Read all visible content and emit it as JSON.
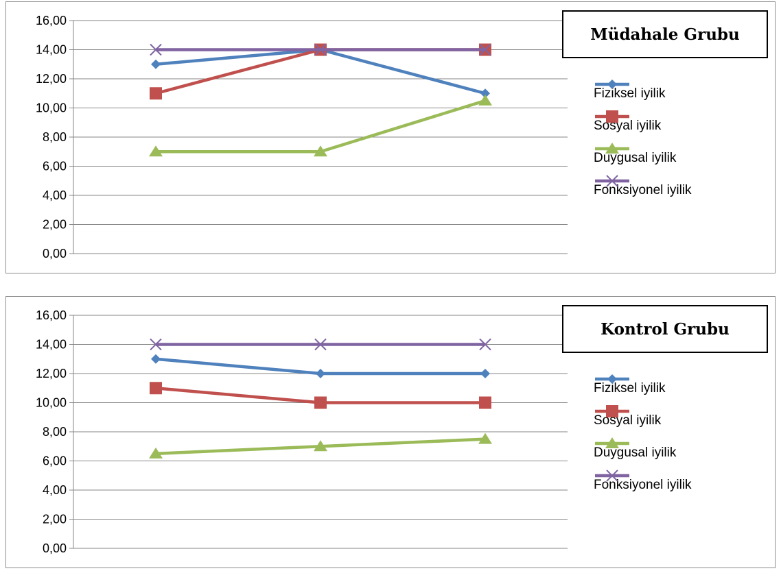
{
  "colors": {
    "Fiziksel iyilik": "#4f81bd",
    "Sosyal iyilik": "#c0504d",
    "Duygusal iyilik": "#9bbb59",
    "Fonksiyonel iyilik": "#8064a2"
  },
  "chart_data": [
    {
      "type": "line",
      "title": "Müdahale Grubu",
      "categories": [
        "",
        "",
        ""
      ],
      "ylim": [
        0,
        16
      ],
      "yticks": [
        "0,00",
        "2,00",
        "4,00",
        "6,00",
        "8,00",
        "10,00",
        "12,00",
        "14,00",
        "16,00"
      ],
      "grid": true,
      "legend_position": "right",
      "series": [
        {
          "name": "Fiziksel iyilik",
          "marker": "diamond",
          "values": [
            13,
            14,
            11
          ]
        },
        {
          "name": "Sosyal iyilik",
          "marker": "square",
          "values": [
            11,
            14,
            14
          ]
        },
        {
          "name": "Duygusal iyilik",
          "marker": "triangle",
          "values": [
            7,
            7,
            10.5
          ]
        },
        {
          "name": "Fonksiyonel iyilik",
          "marker": "x",
          "values": [
            14,
            14,
            14
          ]
        }
      ]
    },
    {
      "type": "line",
      "title": "Kontrol Grubu",
      "categories": [
        "",
        "",
        ""
      ],
      "ylim": [
        0,
        16
      ],
      "yticks": [
        "0,00",
        "2,00",
        "4,00",
        "6,00",
        "8,00",
        "10,00",
        "12,00",
        "14,00",
        "16,00"
      ],
      "grid": true,
      "legend_position": "right",
      "series": [
        {
          "name": "Fiziksel iyilik",
          "marker": "diamond",
          "values": [
            13,
            12,
            12
          ]
        },
        {
          "name": "Sosyal iyilik",
          "marker": "square",
          "values": [
            11,
            10,
            10
          ]
        },
        {
          "name": "Duygusal iyilik",
          "marker": "triangle",
          "values": [
            6.5,
            7,
            7.5
          ]
        },
        {
          "name": "Fonksiyonel iyilik",
          "marker": "x",
          "values": [
            14,
            14,
            14
          ]
        }
      ]
    }
  ]
}
